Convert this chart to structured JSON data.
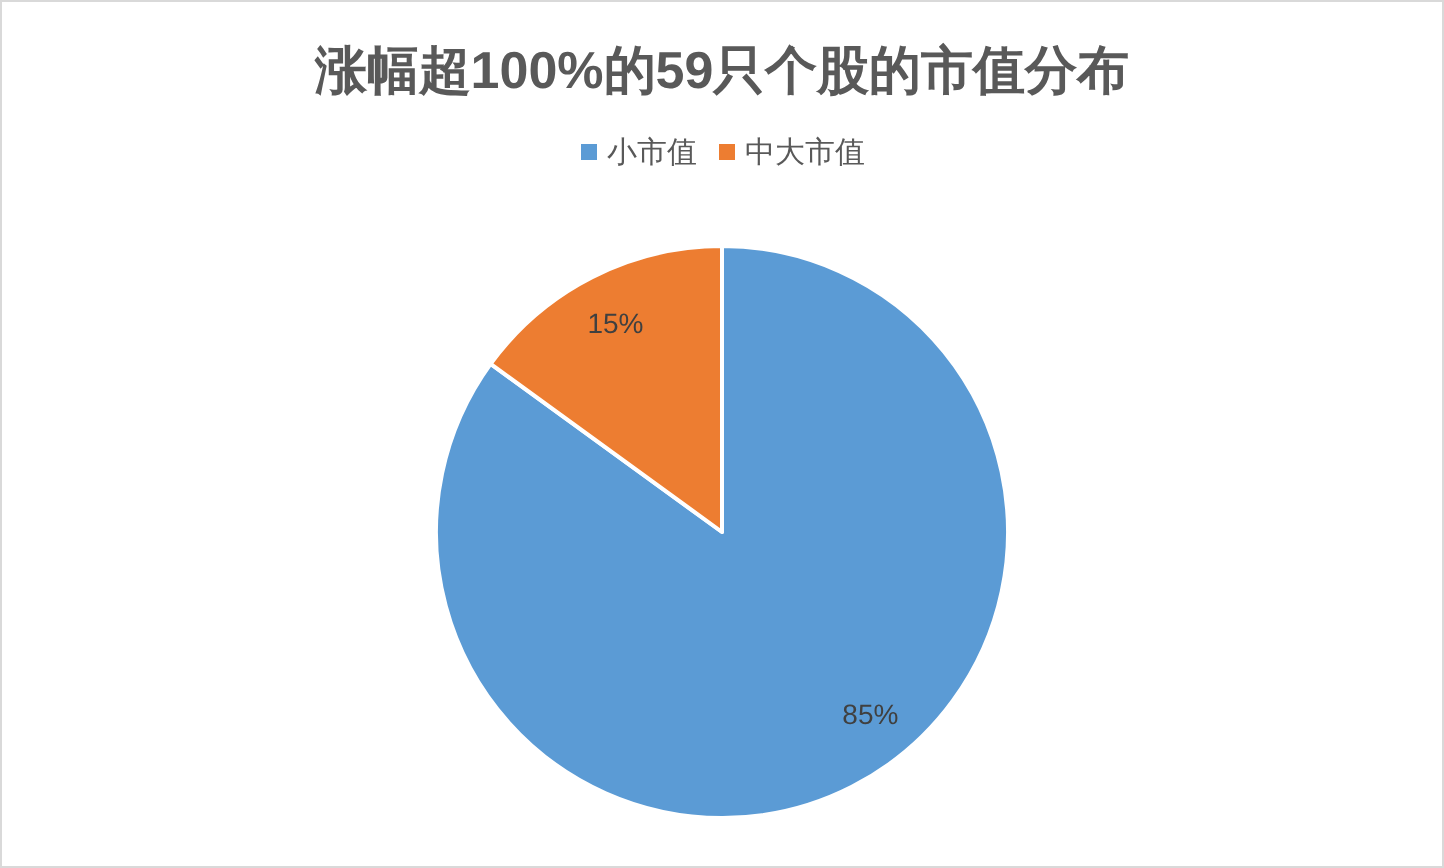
{
  "chart_data": {
    "type": "pie",
    "title": "涨幅超100%的59只个股的市值分布",
    "categories": [
      "小市值",
      "中大市值"
    ],
    "values": [
      85,
      15
    ],
    "colors": [
      "#5b9bd5",
      "#ed7d31"
    ],
    "legend": "top",
    "value_labels": [
      "85%",
      "15%"
    ]
  }
}
